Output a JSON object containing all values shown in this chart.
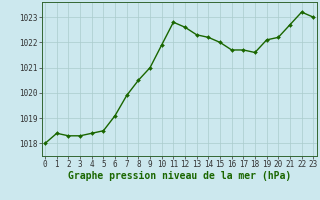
{
  "x": [
    0,
    1,
    2,
    3,
    4,
    5,
    6,
    7,
    8,
    9,
    10,
    11,
    12,
    13,
    14,
    15,
    16,
    17,
    18,
    19,
    20,
    21,
    22,
    23
  ],
  "y": [
    1018.0,
    1018.4,
    1018.3,
    1018.3,
    1018.4,
    1018.5,
    1019.1,
    1019.9,
    1020.5,
    1021.0,
    1021.9,
    1022.8,
    1022.6,
    1022.3,
    1022.2,
    1022.0,
    1021.7,
    1021.7,
    1021.6,
    1022.1,
    1022.2,
    1022.7,
    1023.2,
    1023.0
  ],
  "line_color": "#1a6600",
  "marker_color": "#1a6600",
  "bg_color": "#cce8ee",
  "grid_color": "#aacccc",
  "xlabel": "Graphe pression niveau de la mer (hPa)",
  "ylim": [
    1017.5,
    1023.6
  ],
  "xlim": [
    -0.3,
    23.3
  ],
  "yticks": [
    1018,
    1019,
    1020,
    1021,
    1022,
    1023
  ],
  "xticks": [
    0,
    1,
    2,
    3,
    4,
    5,
    6,
    7,
    8,
    9,
    10,
    11,
    12,
    13,
    14,
    15,
    16,
    17,
    18,
    19,
    20,
    21,
    22,
    23
  ],
  "xlabel_fontsize": 7.0,
  "tick_fontsize": 5.5,
  "line_width": 1.0,
  "marker_size": 2.0
}
